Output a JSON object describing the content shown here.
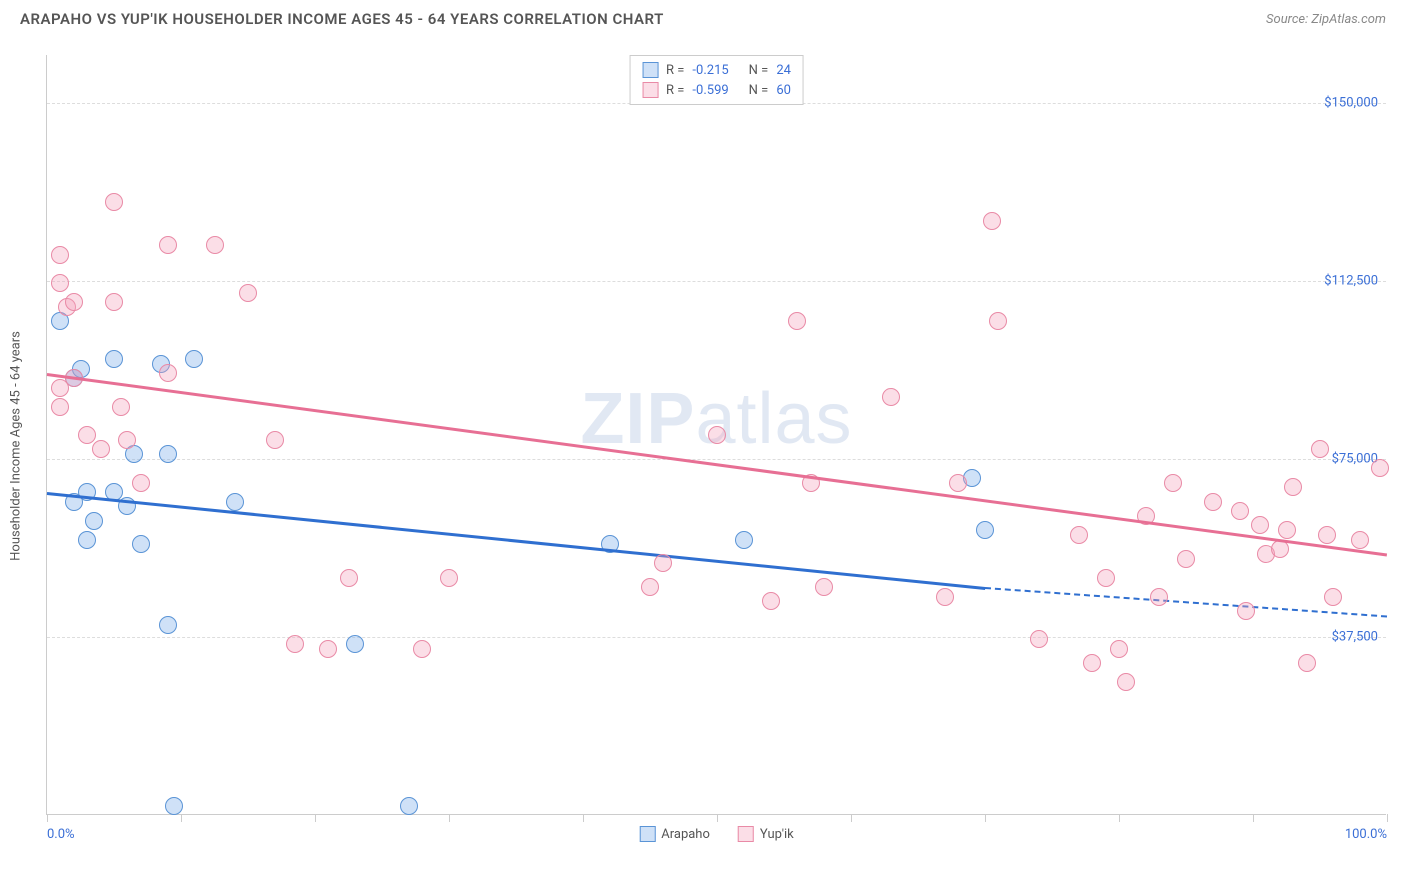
{
  "header": {
    "title": "ARAPAHO VS YUP'IK HOUSEHOLDER INCOME AGES 45 - 64 YEARS CORRELATION CHART",
    "source": "Source: ZipAtlas.com"
  },
  "watermark": {
    "bold": "ZIP",
    "rest": "atlas"
  },
  "chart": {
    "type": "scatter",
    "ylabel": "Householder Income Ages 45 - 64 years",
    "xlim": [
      0,
      100
    ],
    "ylim": [
      0,
      160000
    ],
    "x_ticks": [
      0,
      10,
      20,
      30,
      40,
      50,
      60,
      70,
      80,
      90,
      100
    ],
    "x_tick_labels": {
      "0": "0.0%",
      "100": "100.0%"
    },
    "y_gridlines": [
      37500,
      75000,
      112500,
      150000
    ],
    "y_tick_labels": [
      "$37,500",
      "$75,000",
      "$112,500",
      "$150,000"
    ],
    "background_color": "#ffffff",
    "grid_color": "#dddddd",
    "axis_color": "#cccccc",
    "text_color": "#555555",
    "value_color": "#3b6fd6",
    "point_radius": 9,
    "series": [
      {
        "name": "Arapaho",
        "fill": "rgba(118,169,231,0.35)",
        "stroke": "#5a94d6",
        "line_color": "#2f6fd0",
        "R": "-0.215",
        "N": "24",
        "trend": {
          "x1": 0,
          "y1": 68000,
          "x2": 70,
          "y2": 48000,
          "x2_dash": 100,
          "y2_dash": 42000
        },
        "points": [
          [
            1,
            104000
          ],
          [
            2,
            92000
          ],
          [
            2.5,
            94000
          ],
          [
            2,
            66000
          ],
          [
            3,
            68000
          ],
          [
            3.5,
            62000
          ],
          [
            3,
            58000
          ],
          [
            5,
            96000
          ],
          [
            5,
            68000
          ],
          [
            6,
            65000
          ],
          [
            6.5,
            76000
          ],
          [
            7,
            57000
          ],
          [
            8.5,
            95000
          ],
          [
            9,
            76000
          ],
          [
            9,
            40000
          ],
          [
            9.5,
            2000
          ],
          [
            11,
            96000
          ],
          [
            14,
            66000
          ],
          [
            23,
            36000
          ],
          [
            27,
            2000
          ],
          [
            42,
            57000
          ],
          [
            52,
            58000
          ],
          [
            69,
            71000
          ],
          [
            70,
            60000
          ]
        ]
      },
      {
        "name": "Yup'ik",
        "fill": "rgba(244,160,185,0.35)",
        "stroke": "#e98aa6",
        "line_color": "#e76f94",
        "R": "-0.599",
        "N": "60",
        "trend": {
          "x1": 0,
          "y1": 93000,
          "x2": 100,
          "y2": 55000
        },
        "points": [
          [
            1,
            118000
          ],
          [
            1,
            112000
          ],
          [
            1.5,
            107000
          ],
          [
            1,
            90000
          ],
          [
            1,
            86000
          ],
          [
            2,
            108000
          ],
          [
            2,
            92000
          ],
          [
            3,
            80000
          ],
          [
            4,
            77000
          ],
          [
            5,
            129000
          ],
          [
            5,
            108000
          ],
          [
            5.5,
            86000
          ],
          [
            6,
            79000
          ],
          [
            7,
            70000
          ],
          [
            9,
            120000
          ],
          [
            9,
            93000
          ],
          [
            12.5,
            120000
          ],
          [
            15,
            110000
          ],
          [
            17,
            79000
          ],
          [
            18.5,
            36000
          ],
          [
            21,
            35000
          ],
          [
            22.5,
            50000
          ],
          [
            28,
            35000
          ],
          [
            30,
            50000
          ],
          [
            45,
            48000
          ],
          [
            46,
            53000
          ],
          [
            50,
            80000
          ],
          [
            54,
            45000
          ],
          [
            56,
            104000
          ],
          [
            57,
            70000
          ],
          [
            58,
            48000
          ],
          [
            63,
            88000
          ],
          [
            67,
            46000
          ],
          [
            68,
            70000
          ],
          [
            70.5,
            125000
          ],
          [
            71,
            104000
          ],
          [
            74,
            37000
          ],
          [
            77,
            59000
          ],
          [
            78,
            32000
          ],
          [
            79,
            50000
          ],
          [
            80,
            35000
          ],
          [
            80.5,
            28000
          ],
          [
            82,
            63000
          ],
          [
            83,
            46000
          ],
          [
            84,
            70000
          ],
          [
            85,
            54000
          ],
          [
            87,
            66000
          ],
          [
            89,
            64000
          ],
          [
            89.5,
            43000
          ],
          [
            90.5,
            61000
          ],
          [
            91,
            55000
          ],
          [
            92,
            56000
          ],
          [
            92.5,
            60000
          ],
          [
            93,
            69000
          ],
          [
            94,
            32000
          ],
          [
            95,
            77000
          ],
          [
            95.5,
            59000
          ],
          [
            96,
            46000
          ],
          [
            98,
            58000
          ],
          [
            99.5,
            73000
          ]
        ]
      }
    ],
    "bottom_legend": [
      "Arapaho",
      "Yup'ik"
    ]
  }
}
